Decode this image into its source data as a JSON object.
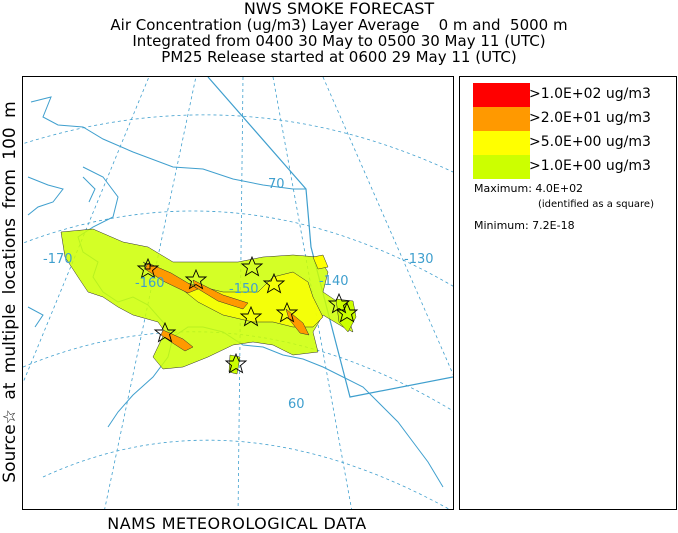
{
  "header": {
    "title": "NWS SMOKE FORECAST",
    "line2": "Air Concentration (ug/m3) Layer Average    0 m and  5000 m",
    "line3": "Integrated from 0400 30 May to 0500 30 May 11 (UTC)",
    "line4": "PM25 Release started at 0600 29 May 11 (UTC)"
  },
  "side_label": "Source☆  at multiple locations  from  100 m",
  "bottom_label": "NAMS METEOROLOGICAL DATA",
  "map": {
    "longitude_labels": [
      "-170",
      "-160",
      "-150",
      "-140",
      "-130"
    ],
    "latitude_labels": [
      "70",
      "60"
    ],
    "colors": {
      "graticule": "#3f9fce",
      "coastline": "#3f9fce",
      "level_1": "#ccff00",
      "level_2": "#ffff00",
      "level_3": "#ff9900",
      "level_4": "#ff0000"
    }
  },
  "legend": {
    "items": [
      {
        "label": ">1.0E+02 ug/m3",
        "color": "#ff0000"
      },
      {
        "label": ">2.0E+01 ug/m3",
        "color": "#ff9900"
      },
      {
        "label": ">5.0E+00 ug/m3",
        "color": "#ffff00"
      },
      {
        "label": ">1.0E+00 ug/m3",
        "color": "#ccff00"
      }
    ],
    "maximum": "Maximum: 4.0E+02",
    "maximum_note": "(identified as a square)",
    "minimum": "Minimum: 7.2E-18"
  }
}
